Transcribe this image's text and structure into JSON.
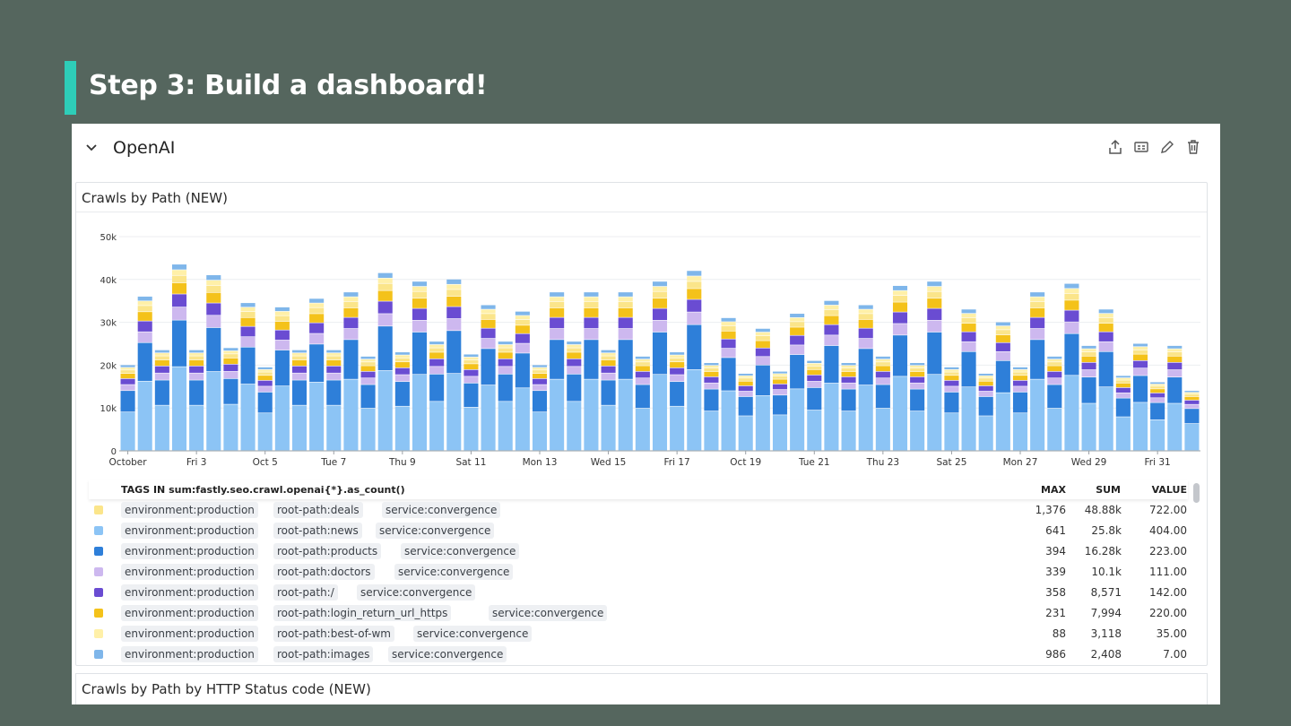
{
  "slide": {
    "title": "Step 3: Build a dashboard!"
  },
  "group": {
    "title": "OpenAI"
  },
  "icons": {
    "collapse": "chevron-down-icon",
    "share": "export-icon",
    "clone": "clone-icon",
    "edit": "pencil-icon",
    "delete": "trash-icon"
  },
  "widget1": {
    "title": "Crawls by Path (NEW)"
  },
  "widget2": {
    "title": "Crawls by Path by HTTP Status code (NEW)"
  },
  "chart_data": {
    "type": "bar",
    "stacked": true,
    "x_tick_labels": [
      "October",
      "Fri 3",
      "Oct 5",
      "Tue 7",
      "Thu 9",
      "Sat 11",
      "Mon 13",
      "Wed 15",
      "Fri 17",
      "Oct 19",
      "Tue 21",
      "Thu 23",
      "Sat 25",
      "Mon 27",
      "Wed 29",
      "Fri 31"
    ],
    "y_ticks": [
      "0",
      "10k",
      "20k",
      "30k",
      "40k",
      "50k"
    ],
    "ylim": [
      0,
      50000
    ],
    "grid": true,
    "totals": [
      20000,
      36000,
      23500,
      43500,
      23500,
      41000,
      24000,
      34500,
      19500,
      33500,
      23500,
      35500,
      23500,
      37000,
      22000,
      41500,
      23000,
      39500,
      25500,
      40000,
      22500,
      34000,
      25500,
      32500,
      20000,
      37000,
      25500,
      37000,
      23500,
      37000,
      22000,
      39500,
      23000,
      42000,
      20500,
      31000,
      18000,
      28500,
      18500,
      32000,
      21000,
      35000,
      20500,
      34000,
      22000,
      38500,
      20500,
      39500,
      19500,
      33000,
      18000,
      30000,
      19500,
      37000,
      22000,
      39000,
      24500,
      33000,
      17500,
      25000,
      16000,
      24500,
      14000
    ],
    "series": [
      {
        "name": "root-path:news",
        "color": "#8cc4f5",
        "share": 0.45
      },
      {
        "name": "root-path:products",
        "color": "#2e7fd9",
        "share": 0.25
      },
      {
        "name": "root-path:doctors",
        "color": "#cdb8ef",
        "share": 0.07
      },
      {
        "name": "root-path:/",
        "color": "#6a4cd2",
        "share": 0.07
      },
      {
        "name": "root-path:login_return_url_https",
        "color": "#f4c21a",
        "share": 0.06
      },
      {
        "name": "root-path:deals",
        "color": "#fbe58a",
        "share": 0.04
      },
      {
        "name": "root-path:best-of-wm",
        "color": "#fff0a8",
        "share": 0.03
      },
      {
        "name": "root-path:images",
        "color": "#7fb6ea",
        "share": 0.03
      }
    ]
  },
  "legend": {
    "header": {
      "tags": "TAGS IN sum:fastly.seo.crawl.openai{*}.as_count()",
      "max": "MAX",
      "sum": "SUM",
      "value": "VALUE"
    },
    "rows": [
      {
        "color": "#fbe58a",
        "env": "environment:production",
        "path": "root-path:deals",
        "service": "service:convergence",
        "max": "1,376",
        "sum": "48.88k",
        "value": "722.00"
      },
      {
        "color": "#8cc4f5",
        "env": "environment:production",
        "path": "root-path:news",
        "service": "service:convergence",
        "max": "641",
        "sum": "25.8k",
        "value": "404.00"
      },
      {
        "color": "#2e7fd9",
        "env": "environment:production",
        "path": "root-path:products",
        "service": "service:convergence",
        "max": "394",
        "sum": "16.28k",
        "value": "223.00"
      },
      {
        "color": "#cdb8ef",
        "env": "environment:production",
        "path": "root-path:doctors",
        "service": "service:convergence",
        "max": "339",
        "sum": "10.1k",
        "value": "111.00"
      },
      {
        "color": "#6a4cd2",
        "env": "environment:production",
        "path": "root-path:/",
        "service": "service:convergence",
        "max": "358",
        "sum": "8,571",
        "value": "142.00"
      },
      {
        "color": "#f4c21a",
        "env": "environment:production",
        "path": "root-path:login_return_url_https",
        "service": "service:convergence",
        "max": "231",
        "sum": "7,994",
        "value": "220.00"
      },
      {
        "color": "#fff0a8",
        "env": "environment:production",
        "path": "root-path:best-of-wm",
        "service": "service:convergence",
        "max": "88",
        "sum": "3,118",
        "value": "35.00"
      },
      {
        "color": "#7fb6ea",
        "env": "environment:production",
        "path": "root-path:images",
        "service": "service:convergence",
        "max": "986",
        "sum": "2,408",
        "value": "7.00"
      }
    ]
  }
}
